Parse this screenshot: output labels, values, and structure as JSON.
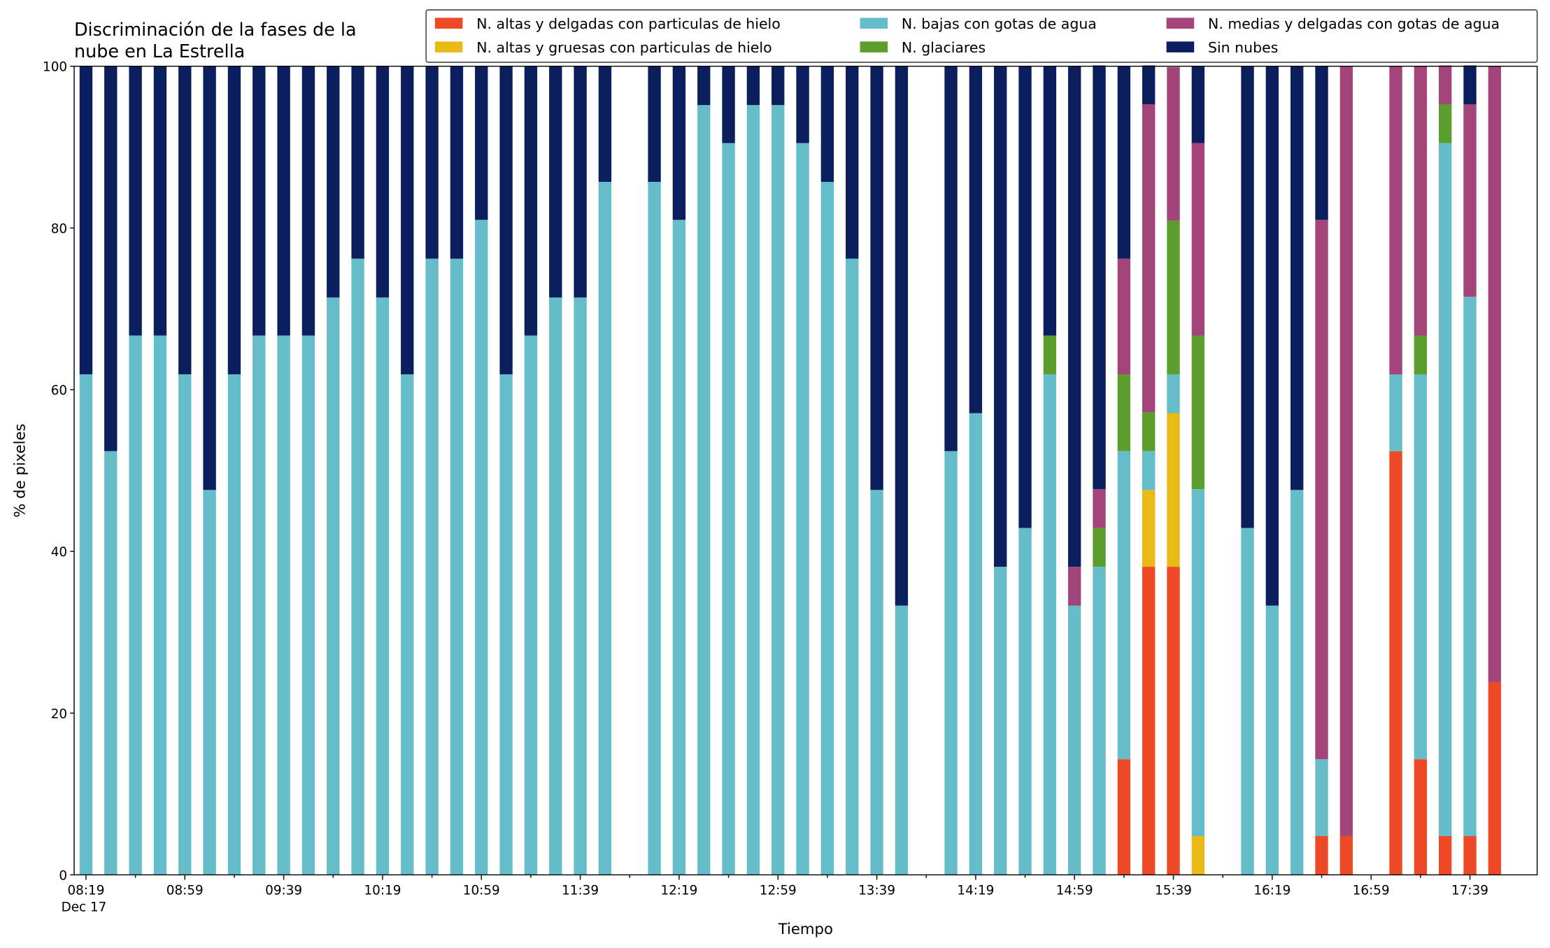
{
  "chart_data": {
    "type": "stacked_bar",
    "title": [
      "Discriminación de la fases de la",
      "nube en La Estrella"
    ],
    "xlabel": "Tiempo",
    "ylabel": "% de pixeles",
    "x_sublabel": "Dec 17",
    "categories": [
      "08:19",
      null,
      null,
      null,
      "08:59",
      null,
      null,
      null,
      "09:39",
      null,
      null,
      null,
      "10:19",
      null,
      null,
      null,
      "10:59",
      null,
      null,
      null,
      "11:39",
      null,
      null,
      null,
      "12:19",
      null,
      null,
      null,
      "12:59",
      null,
      null,
      null,
      "13:39",
      null,
      null,
      null,
      "14:19",
      null,
      null,
      null,
      "14:59",
      null,
      null,
      null,
      "15:39",
      null,
      null,
      null,
      "16:19",
      null,
      null,
      null,
      "16:59",
      null,
      null,
      null,
      "17:39",
      null
    ],
    "ylim": [
      0,
      100
    ],
    "yticks": [
      0,
      20,
      40,
      60,
      80,
      100
    ],
    "series": [
      {
        "name": "N. altas y delgadas con particulas de hielo",
        "color": "#ef4a28",
        "values": [
          0,
          0,
          0,
          0,
          0,
          0,
          0,
          0,
          0,
          0,
          0,
          0,
          0,
          0,
          0,
          0,
          0,
          0,
          0,
          0,
          0,
          0,
          null,
          0,
          0,
          0,
          0,
          0,
          0,
          0,
          0,
          0,
          0,
          0,
          null,
          0,
          0,
          0,
          0,
          0,
          0,
          0,
          14.3,
          38.1,
          38.1,
          0,
          null,
          0,
          0,
          0,
          4.8,
          4.8,
          null,
          52.4,
          14.3,
          4.8,
          4.8,
          23.8
        ]
      },
      {
        "name": "N. altas y gruesas con particulas de hielo",
        "color": "#e8b917",
        "values": [
          0,
          0,
          0,
          0,
          0,
          0,
          0,
          0,
          0,
          0,
          0,
          0,
          0,
          0,
          0,
          0,
          0,
          0,
          0,
          0,
          0,
          0,
          null,
          0,
          0,
          0,
          0,
          0,
          0,
          0,
          0,
          0,
          0,
          0,
          null,
          0,
          0,
          0,
          0,
          0,
          0,
          0,
          0,
          9.5,
          19.0,
          4.8,
          null,
          0,
          0,
          0,
          0,
          0,
          null,
          0,
          0,
          0,
          0,
          0
        ]
      },
      {
        "name": "N. bajas con gotas de agua",
        "color": "#65bdca",
        "values": [
          61.9,
          52.4,
          66.7,
          66.7,
          61.9,
          47.6,
          61.9,
          66.7,
          66.7,
          66.7,
          71.4,
          76.2,
          71.4,
          61.9,
          76.2,
          76.2,
          81.0,
          61.9,
          66.7,
          71.4,
          71.4,
          85.7,
          null,
          85.7,
          81.0,
          95.2,
          90.5,
          95.2,
          95.2,
          90.5,
          85.7,
          76.2,
          47.6,
          33.3,
          null,
          52.4,
          57.1,
          38.1,
          42.9,
          61.9,
          33.3,
          38.1,
          38.1,
          4.8,
          4.8,
          42.9,
          null,
          42.9,
          33.3,
          47.6,
          9.5,
          0,
          null,
          9.5,
          47.6,
          85.7,
          66.7,
          0
        ]
      },
      {
        "name": "N. glaciares",
        "color": "#5c9e2d",
        "values": [
          0,
          0,
          0,
          0,
          0,
          0,
          0,
          0,
          0,
          0,
          0,
          0,
          0,
          0,
          0,
          0,
          0,
          0,
          0,
          0,
          0,
          0,
          null,
          0,
          0,
          0,
          0,
          0,
          0,
          0,
          0,
          0,
          0,
          0,
          null,
          0,
          0,
          0,
          0,
          4.8,
          0,
          4.8,
          9.5,
          4.8,
          19.0,
          19.0,
          null,
          0,
          0,
          0,
          0,
          0,
          null,
          0,
          4.8,
          4.8,
          0,
          0
        ]
      },
      {
        "name": "N. medias y delgadas con gotas de agua",
        "color": "#a3447a",
        "values": [
          0,
          0,
          0,
          0,
          0,
          0,
          0,
          0,
          0,
          0,
          0,
          0,
          0,
          0,
          0,
          0,
          0,
          0,
          0,
          0,
          0,
          0,
          null,
          0,
          0,
          0,
          0,
          0,
          0,
          0,
          0,
          0,
          0,
          0,
          null,
          0,
          0,
          0,
          0,
          0,
          4.8,
          4.8,
          14.3,
          38.1,
          19.0,
          23.8,
          null,
          0,
          0,
          0,
          66.7,
          95.2,
          null,
          38.1,
          33.3,
          4.8,
          23.8,
          76.2
        ]
      },
      {
        "name": "Sin nubes",
        "color": "#0b1f5e",
        "values": [
          38.1,
          47.6,
          33.3,
          33.3,
          38.1,
          52.4,
          38.1,
          33.3,
          33.3,
          33.3,
          28.6,
          23.8,
          28.6,
          38.1,
          23.8,
          23.8,
          19.0,
          38.1,
          33.3,
          28.6,
          28.6,
          14.3,
          null,
          14.3,
          19.0,
          4.8,
          9.5,
          4.8,
          4.8,
          9.5,
          14.3,
          23.8,
          52.4,
          66.7,
          null,
          47.6,
          42.9,
          61.9,
          57.1,
          33.3,
          61.9,
          52.4,
          23.8,
          4.8,
          0,
          9.5,
          null,
          57.1,
          66.7,
          52.4,
          19.0,
          0,
          null,
          0,
          0,
          0,
          4.8,
          0
        ]
      }
    ]
  }
}
